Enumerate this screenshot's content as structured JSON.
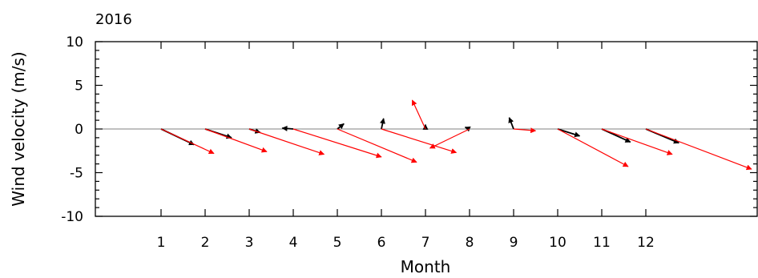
{
  "chart_data": {
    "type": "vector",
    "title": "2016",
    "xlabel": "Month",
    "ylabel": "Wind velocity (m/s)",
    "xlim": [
      0,
      13.5
    ],
    "ylim": [
      -10,
      10
    ],
    "x_ticks": [
      "1",
      "2",
      "3",
      "4",
      "5",
      "6",
      "7",
      "8",
      "9",
      "10",
      "11",
      "12"
    ],
    "y_ticks": [
      "10",
      "5",
      "0",
      "-5",
      "-10"
    ],
    "zero_line": true,
    "colors": {
      "black_series": "#000000",
      "red_series": "#ff0000",
      "zero_line": "#808080"
    },
    "series": [
      {
        "color": "black",
        "vectors": [
          {
            "x": 1,
            "u": 0.75,
            "v": -1.8
          },
          {
            "x": 2,
            "u": 0.6,
            "v": -1.0
          },
          {
            "x": 3,
            "u": 0.25,
            "v": -0.4
          },
          {
            "x": 4,
            "u": -0.25,
            "v": 0.1
          },
          {
            "x": 5,
            "u": 0.15,
            "v": 0.6
          },
          {
            "x": 6,
            "u": 0.05,
            "v": 1.2
          },
          {
            "x": 7,
            "u": 0.0,
            "v": 0.5
          },
          {
            "x": 8,
            "u": -0.1,
            "v": 0.2
          },
          {
            "x": 9,
            "u": -0.1,
            "v": 1.3
          },
          {
            "x": 10,
            "u": 0.5,
            "v": -0.8
          },
          {
            "x": 11,
            "u": 0.65,
            "v": -1.5
          },
          {
            "x": 12,
            "u": 0.75,
            "v": -1.6
          }
        ]
      },
      {
        "color": "red",
        "vectors": [
          {
            "x": 1,
            "u": 1.2,
            "v": -2.8
          },
          {
            "x": 2,
            "u": 1.4,
            "v": -2.6
          },
          {
            "x": 3,
            "u": 1.7,
            "v": -2.9
          },
          {
            "x": 4,
            "u": 2.0,
            "v": -3.2
          },
          {
            "x": 5,
            "u": 1.8,
            "v": -3.8
          },
          {
            "x": 6,
            "u": 1.7,
            "v": -2.7
          },
          {
            "x": 7,
            "u": -0.3,
            "v": 3.3
          },
          {
            "x": 8,
            "u": -0.9,
            "v": -2.2
          },
          {
            "x": 9,
            "u": 0.5,
            "v": -0.2
          },
          {
            "x": 10,
            "u": 1.6,
            "v": -4.3
          },
          {
            "x": 11,
            "u": 1.6,
            "v": -2.9
          },
          {
            "x": 12,
            "u": 2.4,
            "v": -4.6
          }
        ]
      }
    ]
  }
}
